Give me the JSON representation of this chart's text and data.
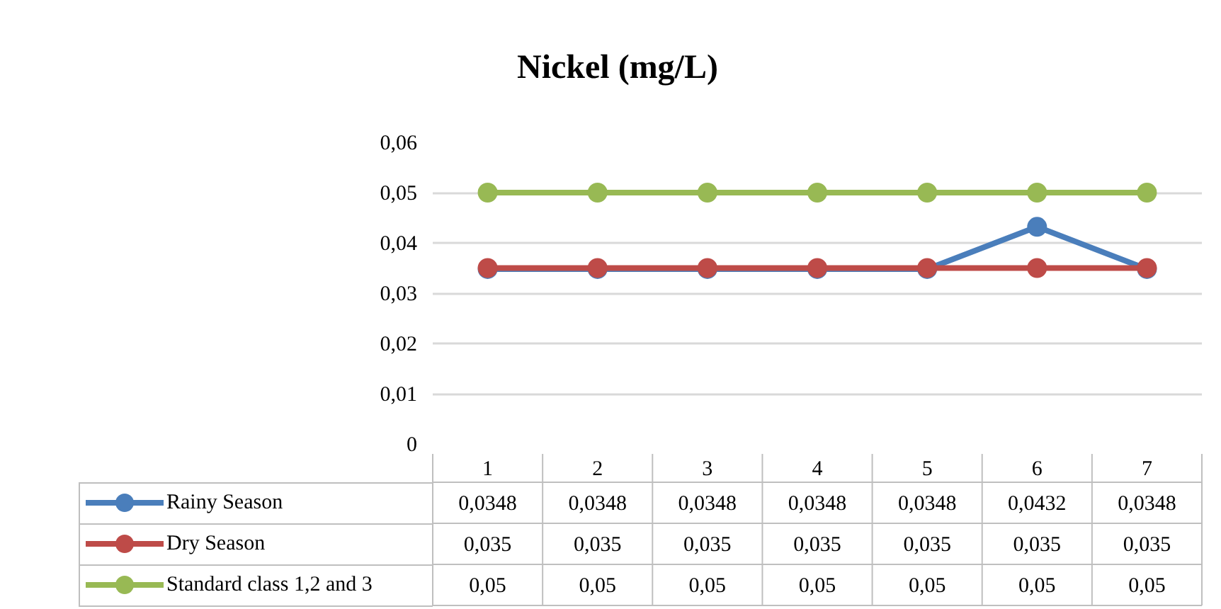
{
  "chart_data": {
    "type": "line",
    "title": "Nickel (mg/L)",
    "categories": [
      "1",
      "2",
      "3",
      "4",
      "5",
      "6",
      "7"
    ],
    "series": [
      {
        "name": "Rainy Season",
        "color": "#4a7ebb",
        "values": [
          0.0348,
          0.0348,
          0.0348,
          0.0348,
          0.0348,
          0.0432,
          0.0348
        ],
        "value_labels": [
          "0,0348",
          "0,0348",
          "0,0348",
          "0,0348",
          "0,0348",
          "0,0432",
          "0,0348"
        ]
      },
      {
        "name": "Dry Season",
        "color": "#be4b48",
        "values": [
          0.035,
          0.035,
          0.035,
          0.035,
          0.035,
          0.035,
          0.035
        ],
        "value_labels": [
          "0,035",
          "0,035",
          "0,035",
          "0,035",
          "0,035",
          "0,035",
          "0,035"
        ]
      },
      {
        "name": "Standard class 1,2 and 3",
        "color": "#98b954",
        "values": [
          0.05,
          0.05,
          0.05,
          0.05,
          0.05,
          0.05,
          0.05
        ],
        "value_labels": [
          "0,05",
          "0,05",
          "0,05",
          "0,05",
          "0,05",
          "0,05",
          "0,05"
        ]
      }
    ],
    "ylim": [
      0,
      0.06
    ],
    "yticks": [
      {
        "value": 0,
        "label": "0"
      },
      {
        "value": 0.01,
        "label": "0,01"
      },
      {
        "value": 0.02,
        "label": "0,02"
      },
      {
        "value": 0.03,
        "label": "0,03"
      },
      {
        "value": 0.04,
        "label": "0,04"
      },
      {
        "value": 0.05,
        "label": "0,05"
      },
      {
        "value": 0.06,
        "label": "0,06"
      }
    ],
    "grid": "y",
    "legend": "bottom",
    "marker": "circle",
    "line_style": "solid",
    "tick_labels": "y"
  }
}
